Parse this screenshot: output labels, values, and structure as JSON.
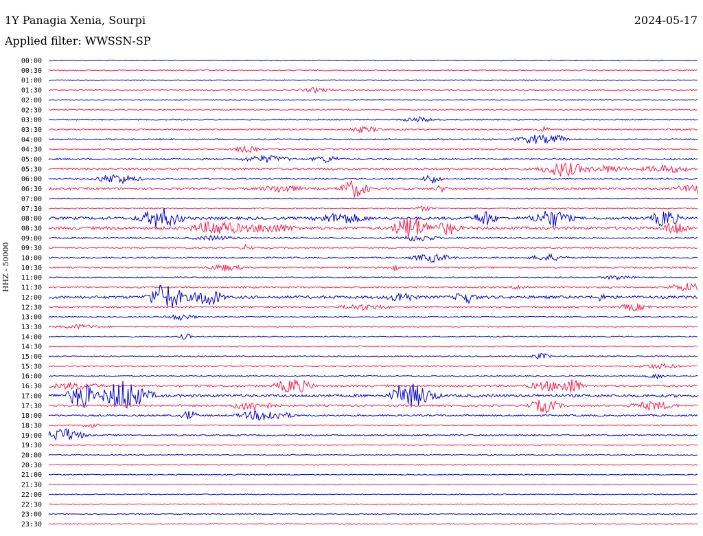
{
  "header": {
    "station": "1Y Panagia Xenia, Sourpi",
    "date": "2024-05-17",
    "filter_label": "Applied filter: WWSSN-SP"
  },
  "chart_data": {
    "type": "line",
    "title": "1Y Panagia Xenia, Sourpi",
    "ylabel": "HHZ - 50000",
    "rows": [
      "00:00",
      "00:30",
      "01:00",
      "01:30",
      "02:00",
      "02:30",
      "03:00",
      "03:30",
      "04:00",
      "04:30",
      "05:00",
      "05:30",
      "06:00",
      "06:30",
      "07:00",
      "07:30",
      "08:00",
      "08:30",
      "09:00",
      "09:30",
      "10:00",
      "10:30",
      "11:00",
      "11:30",
      "12:00",
      "12:30",
      "13:00",
      "13:30",
      "14:00",
      "14:30",
      "15:00",
      "15:30",
      "16:00",
      "16:30",
      "17:00",
      "17:30",
      "18:00",
      "18:30",
      "19:00",
      "19:30",
      "20:00",
      "20:30",
      "21:00",
      "21:30",
      "22:00",
      "22:30",
      "23:00",
      "23:30"
    ],
    "trace_colors": [
      "#0000cc",
      "#ff1a4a"
    ],
    "activity": [
      0.06,
      0.08,
      0.04,
      0.1,
      0.05,
      0.08,
      0.2,
      0.25,
      0.25,
      0.15,
      0.4,
      0.55,
      0.3,
      0.6,
      0.03,
      0.15,
      0.9,
      0.95,
      0.25,
      0.2,
      0.25,
      0.25,
      0.15,
      0.35,
      0.95,
      0.4,
      0.1,
      0.1,
      0.1,
      0.06,
      0.15,
      0.15,
      0.1,
      0.6,
      0.95,
      0.5,
      0.4,
      0.1,
      0.25,
      0.06,
      0.06,
      0.08,
      0.06,
      0.05,
      0.03,
      0.04,
      0.06,
      0.08
    ]
  }
}
